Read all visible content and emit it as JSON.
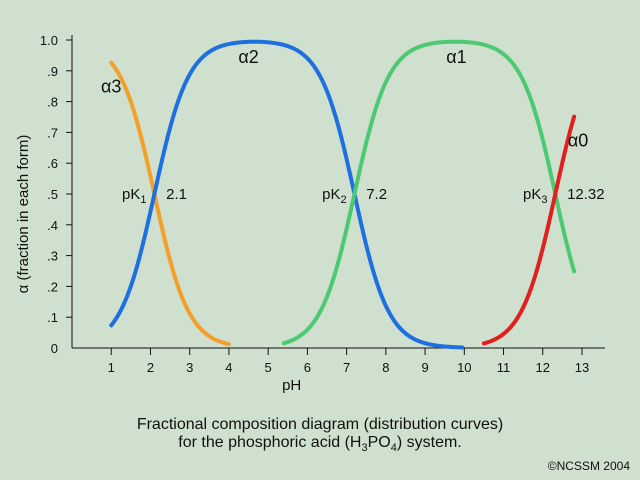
{
  "chart_data": {
    "type": "line",
    "xlabel": "pH",
    "ylabel": "α (fraction in each form)",
    "xlim": [
      0,
      14
    ],
    "ylim": [
      0,
      1
    ],
    "x_ticks": [
      "1",
      "2",
      "3",
      "4",
      "5",
      "6",
      "7",
      "8",
      "9",
      "10",
      "11",
      "12",
      "13"
    ],
    "y_ticks": [
      "0",
      ".1",
      ".2",
      ".3",
      ".4",
      ".5",
      ".6",
      ".7",
      ".8",
      ".9",
      "1.0"
    ],
    "series": [
      {
        "name": "α3",
        "color": "#f2a02a",
        "pH_range": [
          1.0,
          4.0
        ]
      },
      {
        "name": "α2",
        "color": "#1e6fe0",
        "pH_range": [
          1.0,
          9.95
        ]
      },
      {
        "name": "α1",
        "color": "#4dc873",
        "pH_range": [
          5.4,
          12.8
        ]
      },
      {
        "name": "α0",
        "color": "#e0201e",
        "pH_range": [
          10.5,
          12.8
        ]
      }
    ],
    "pK_annotations": [
      {
        "base": "pK",
        "sub": "1",
        "value": "2.1",
        "pK": 2.1
      },
      {
        "base": "pK",
        "sub": "2",
        "value": "7.2",
        "pK": 7.2
      },
      {
        "base": "pK",
        "sub": "3",
        "value": "12.32",
        "pK": 12.32
      }
    ]
  },
  "caption": {
    "line1": "Fractional composition diagram (distribution curves)",
    "line2_prefix": "for the phosphoric acid (H",
    "line2_sub1": "3",
    "line2_mid": "PO",
    "line2_sub2": "4",
    "line2_suffix": ") system."
  },
  "copyright": "©NCSSM 2004"
}
